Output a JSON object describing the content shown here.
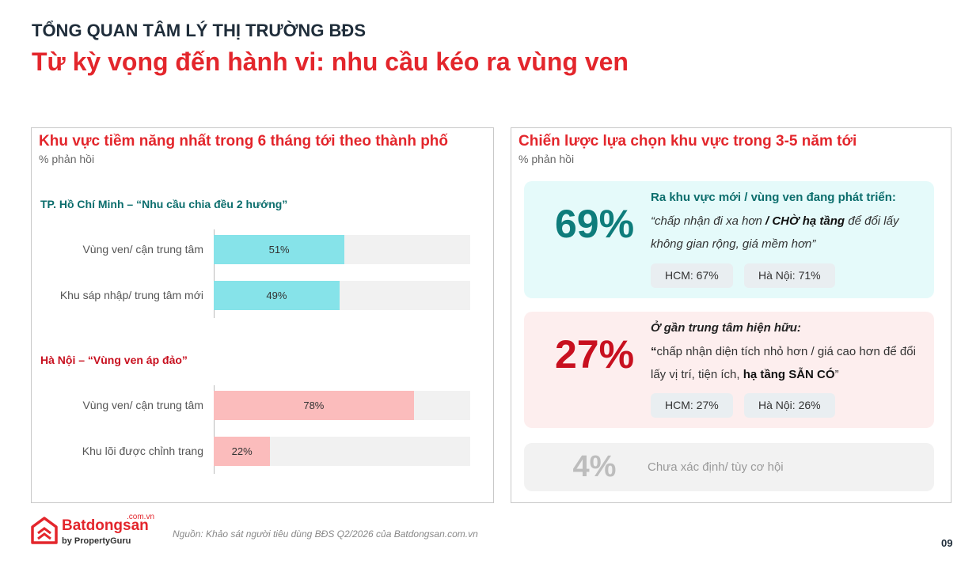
{
  "header": {
    "kicker": "TỔNG QUAN TÂM LÝ THỊ TRƯỜNG BĐS",
    "title": "Từ kỳ vọng đến hành vi: nhu cầu kéo ra vùng ven"
  },
  "left_panel": {
    "title": "Khu vực tiềm năng nhất trong 6 tháng tới theo thành phố",
    "subtitle": "% phản hồi",
    "xlim": [
      0,
      100
    ],
    "groups": [
      {
        "title": "TP. Hồ Chí Minh – “Nhu cầu chia đều 2 hướng”",
        "color": "#86e3e9",
        "categories": [
          "Vùng ven/ cận trung tâm",
          "Khu sáp nhập/ trung tâm mới"
        ],
        "values": [
          51,
          49
        ],
        "value_labels": [
          "51%",
          "49%"
        ]
      },
      {
        "title": "Hà Nội – “Vùng ven áp đảo”",
        "color": "#fbbcbc",
        "categories": [
          "Vùng ven/ cận trung tâm",
          "Khu lõi được chỉnh trang"
        ],
        "values": [
          78,
          22
        ],
        "value_labels": [
          "78%",
          "22%"
        ]
      }
    ]
  },
  "right_panel": {
    "title": "Chiến lược lựa chọn khu vực trong 3-5 năm tới",
    "subtitle": "% phản hồi",
    "cards": [
      {
        "value_label": "69%",
        "heading": "Ra khu vực mới / vùng ven đang phát triển:",
        "italic": true,
        "quote": [
          {
            "text": "“chấp nhận đi xa hơn ",
            "bold": false
          },
          {
            "text": "/ CHỜ hạ tầng",
            "bold": true
          },
          {
            "text": " để đổi lấy không gian rộng, giá mềm hơn”",
            "bold": false
          }
        ],
        "chips": [
          "HCM: 67%",
          "Hà Nội: 71%"
        ]
      },
      {
        "value_label": "27%",
        "heading": "Ở gần trung tâm hiện hữu:",
        "italic": false,
        "quote": [
          {
            "text": "“",
            "bold": true
          },
          {
            "text": "chấp nhận diện tích nhỏ hơn / giá cao hơn để đổi lấy vị trí, tiện ích, ",
            "bold": false
          },
          {
            "text": "hạ tầng SẴN CÓ",
            "bold": true
          },
          {
            "text": "”",
            "bold": false
          }
        ],
        "chips": [
          "HCM: 27%",
          "Hà Nội: 26%"
        ]
      },
      {
        "value_label": "4%",
        "heading": "Chưa xác định/ tùy cơ hội"
      }
    ]
  },
  "footer": {
    "logo": "Batdongsan",
    "logo_domain": ".com.vn",
    "logo_tagline": "by PropertyGuru",
    "source": "Nguồn: Khảo sát người tiêu dùng BĐS Q2/2026 của Batdongsan.com.vn",
    "page": "09"
  }
}
